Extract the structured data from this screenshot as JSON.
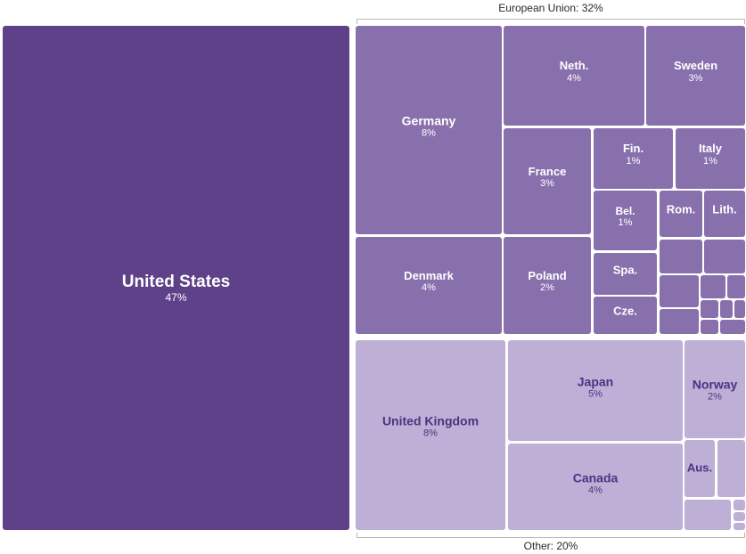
{
  "chart_data": {
    "type": "treemap",
    "groups": [
      {
        "label": "European Union: 32%"
      },
      {
        "label": "Other: 20%"
      }
    ],
    "colors": {
      "us": "#5e4189",
      "eu": "#8870ad",
      "other": "#bdafd6",
      "dark_text": "#4e3282",
      "light_text": "#ffffff"
    },
    "tiles": [
      {
        "name": "United States",
        "value": "47%",
        "group": "us"
      },
      {
        "name": "Germany",
        "value": "8%",
        "group": "eu"
      },
      {
        "name": "Neth.",
        "value": "4%",
        "group": "eu"
      },
      {
        "name": "Sweden",
        "value": "3%",
        "group": "eu"
      },
      {
        "name": "France",
        "value": "3%",
        "group": "eu"
      },
      {
        "name": "Fin.",
        "value": "1%",
        "group": "eu"
      },
      {
        "name": "Italy",
        "value": "1%",
        "group": "eu"
      },
      {
        "name": "Bel.",
        "value": "1%",
        "group": "eu"
      },
      {
        "name": "Rom.",
        "value": "",
        "group": "eu"
      },
      {
        "name": "Lith.",
        "value": "",
        "group": "eu"
      },
      {
        "name": "Denmark",
        "value": "4%",
        "group": "eu"
      },
      {
        "name": "Poland",
        "value": "2%",
        "group": "eu"
      },
      {
        "name": "Spa.",
        "value": "",
        "group": "eu"
      },
      {
        "name": "Cze.",
        "value": "",
        "group": "eu"
      },
      {
        "name": "",
        "value": "",
        "group": "eu"
      },
      {
        "name": "",
        "value": "",
        "group": "eu"
      },
      {
        "name": "",
        "value": "",
        "group": "eu"
      },
      {
        "name": "",
        "value": "",
        "group": "eu"
      },
      {
        "name": "",
        "value": "",
        "group": "eu"
      },
      {
        "name": "",
        "value": "",
        "group": "eu"
      },
      {
        "name": "",
        "value": "",
        "group": "eu"
      },
      {
        "name": "",
        "value": "",
        "group": "eu"
      },
      {
        "name": "",
        "value": "",
        "group": "eu"
      },
      {
        "name": "",
        "value": "",
        "group": "eu"
      },
      {
        "name": "",
        "value": "",
        "group": "eu"
      },
      {
        "name": "United Kingdom",
        "value": "8%",
        "group": "other"
      },
      {
        "name": "Japan",
        "value": "5%",
        "group": "other"
      },
      {
        "name": "Norway",
        "value": "2%",
        "group": "other"
      },
      {
        "name": "Canada",
        "value": "4%",
        "group": "other"
      },
      {
        "name": "Aus.",
        "value": "",
        "group": "other"
      },
      {
        "name": "",
        "value": "",
        "group": "other"
      },
      {
        "name": "",
        "value": "",
        "group": "other"
      },
      {
        "name": "",
        "value": "",
        "group": "other"
      },
      {
        "name": "",
        "value": "",
        "group": "other"
      },
      {
        "name": "",
        "value": "",
        "group": "other"
      }
    ]
  }
}
